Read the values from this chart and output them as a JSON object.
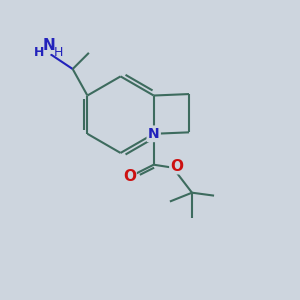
{
  "bg_color": "#cdd5de",
  "bond_color": "#3d6b5e",
  "n_color": "#2222bb",
  "o_color": "#cc1111",
  "bond_width": 1.5,
  "figsize": [
    3.0,
    3.0
  ],
  "dpi": 100,
  "xlim": [
    0,
    10
  ],
  "ylim": [
    0,
    10
  ]
}
